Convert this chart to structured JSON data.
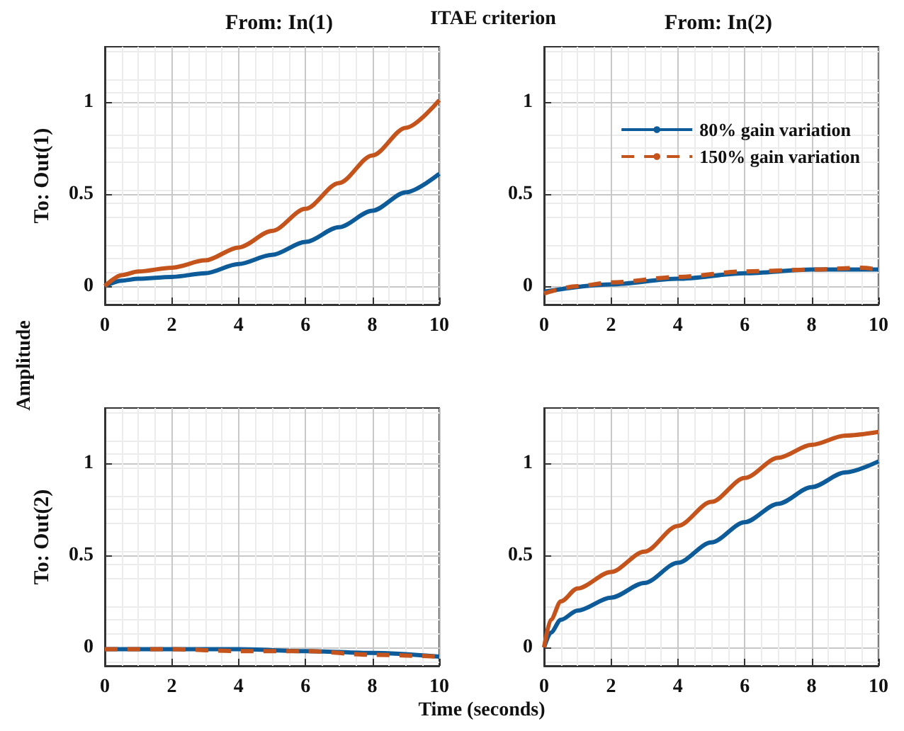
{
  "chart_data": [
    {
      "type": "line",
      "title": "From: In(1)",
      "ylabel": "To: Out(1)",
      "annotations": [
        "ITAE criterion",
        "Amplitude",
        "Time (seconds)"
      ],
      "xlim": [
        0,
        10
      ],
      "xticks": [
        0,
        2,
        4,
        6,
        8,
        10
      ],
      "ylim": [
        -0.1,
        1.3
      ],
      "yticks": [
        0,
        0.5,
        1
      ],
      "grid": true,
      "marker": "none",
      "series": [
        {
          "color": "#0d5c99",
          "x": [
            0,
            0.5,
            1,
            2,
            3,
            4,
            5,
            6,
            7,
            8,
            9,
            10
          ],
          "values": [
            0,
            0.03,
            0.04,
            0.05,
            0.07,
            0.12,
            0.17,
            0.24,
            0.32,
            0.41,
            0.51,
            0.61
          ]
        },
        {
          "color": "#c4541c",
          "x": [
            0,
            0.5,
            1,
            2,
            3,
            4,
            5,
            6,
            7,
            8,
            9,
            10
          ],
          "values": [
            0,
            0.06,
            0.08,
            0.1,
            0.14,
            0.21,
            0.3,
            0.42,
            0.56,
            0.71,
            0.86,
            1.01
          ]
        }
      ]
    },
    {
      "type": "line",
      "title": "From: In(2)",
      "xlim": [
        0,
        10
      ],
      "xticks": [
        0,
        2,
        4,
        6,
        8,
        10
      ],
      "ylim": [
        -0.1,
        1.3
      ],
      "yticks": [
        0,
        0.5,
        1
      ],
      "grid": true,
      "marker": "none",
      "legend": "top right",
      "series": [
        {
          "name": "80% gain variation",
          "color": "#0d5c99",
          "x": [
            0,
            2,
            4,
            6,
            8,
            10
          ],
          "values": [
            -0.03,
            0.01,
            0.04,
            0.07,
            0.09,
            0.09
          ]
        },
        {
          "name": "150% gain variation",
          "color": "#c4541c",
          "line_style": "dashed",
          "x": [
            0,
            1,
            2,
            4,
            6,
            8,
            9.5,
            10
          ],
          "values": [
            -0.04,
            0,
            0.02,
            0.05,
            0.08,
            0.09,
            0.1,
            0.09
          ]
        }
      ]
    },
    {
      "type": "line",
      "ylabel": "To: Out(2)",
      "xlim": [
        0,
        10
      ],
      "xticks": [
        0,
        2,
        4,
        6,
        8,
        10
      ],
      "ylim": [
        -0.1,
        1.3
      ],
      "yticks": [
        0,
        0.5,
        1
      ],
      "grid": true,
      "marker": "none",
      "series": [
        {
          "color": "#0d5c99",
          "x": [
            0,
            2,
            4,
            6,
            8,
            10
          ],
          "values": [
            -0.01,
            -0.01,
            -0.01,
            -0.02,
            -0.03,
            -0.05
          ]
        },
        {
          "color": "#c4541c",
          "line_style": "dashed",
          "x": [
            0,
            2,
            4,
            6,
            8,
            10
          ],
          "values": [
            -0.01,
            -0.01,
            -0.02,
            -0.02,
            -0.04,
            -0.05
          ]
        }
      ]
    },
    {
      "type": "line",
      "xlim": [
        0,
        10
      ],
      "xticks": [
        0,
        2,
        4,
        6,
        8,
        10
      ],
      "ylim": [
        -0.1,
        1.3
      ],
      "yticks": [
        0,
        0.5,
        1
      ],
      "grid": true,
      "marker": "none",
      "series": [
        {
          "color": "#0d5c99",
          "x": [
            0,
            0.2,
            0.5,
            1,
            2,
            3,
            4,
            5,
            6,
            7,
            8,
            9,
            10
          ],
          "values": [
            0,
            0.08,
            0.15,
            0.2,
            0.27,
            0.35,
            0.46,
            0.57,
            0.68,
            0.78,
            0.87,
            0.95,
            1.01
          ]
        },
        {
          "color": "#c4541c",
          "x": [
            0,
            0.2,
            0.5,
            1,
            2,
            3,
            4,
            5,
            6,
            7,
            8,
            9,
            10
          ],
          "values": [
            0,
            0.15,
            0.25,
            0.32,
            0.41,
            0.52,
            0.66,
            0.79,
            0.92,
            1.03,
            1.1,
            1.15,
            1.17
          ]
        }
      ]
    }
  ]
}
